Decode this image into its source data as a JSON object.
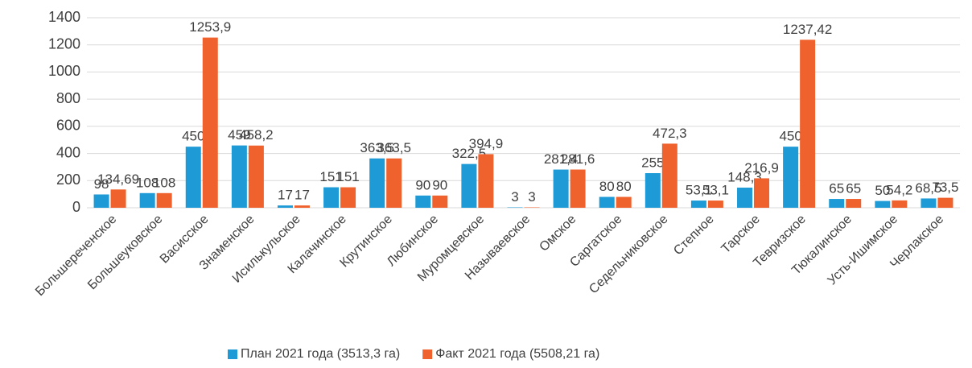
{
  "chart_data": {
    "type": "bar",
    "categories": [
      "Большереченское",
      "Большеуковское",
      "Васисское",
      "Знаменское",
      "Исилькульское",
      "Калачинское",
      "Крутинское",
      "Любинское",
      "Муромцевское",
      "Называевское",
      "Омское",
      "Саргатское",
      "Седельниковское",
      "Степное",
      "Тарское",
      "Тевризское",
      "Тюкалинское",
      "Усть-Ишимское",
      "Черлакское"
    ],
    "series": [
      {
        "name": "План 2021 года (3513,3 га)",
        "color": "#1e9bd7",
        "values": [
          98,
          108,
          450,
          459,
          17,
          151,
          363.5,
          90,
          322.5,
          3,
          281.4,
          80,
          255,
          53.1,
          148.3,
          450,
          65,
          50,
          68.5
        ],
        "value_labels": [
          "98",
          "108",
          "450",
          "459",
          "17",
          "151",
          "363,5",
          "90",
          "322,5",
          "3",
          "281,4",
          "80",
          "255",
          "53,1",
          "148,3",
          "450",
          "65",
          "50",
          "68,5"
        ]
      },
      {
        "name": "Факт 2021 года (5508,21 га)",
        "color": "#f0622d",
        "values": [
          134.69,
          108,
          1253.9,
          458.2,
          17,
          151,
          363.5,
          90,
          394.9,
          3,
          281.6,
          80,
          472.3,
          53.1,
          216.9,
          1237.42,
          65,
          54.2,
          73.5
        ],
        "value_labels": [
          "134,69",
          "108",
          "1253,9",
          "458,2",
          "17",
          "151",
          "363,5",
          "90",
          "394,9",
          "3",
          "281,6",
          "80",
          "472,3",
          "53,1",
          "216,9",
          "1237,42",
          "65",
          "54,2",
          "73,5"
        ]
      }
    ],
    "ylim": [
      0,
      1400
    ],
    "yticks": [
      0,
      200,
      400,
      600,
      800,
      1000,
      1200,
      1400
    ],
    "grid": true,
    "legend": "bottom"
  }
}
